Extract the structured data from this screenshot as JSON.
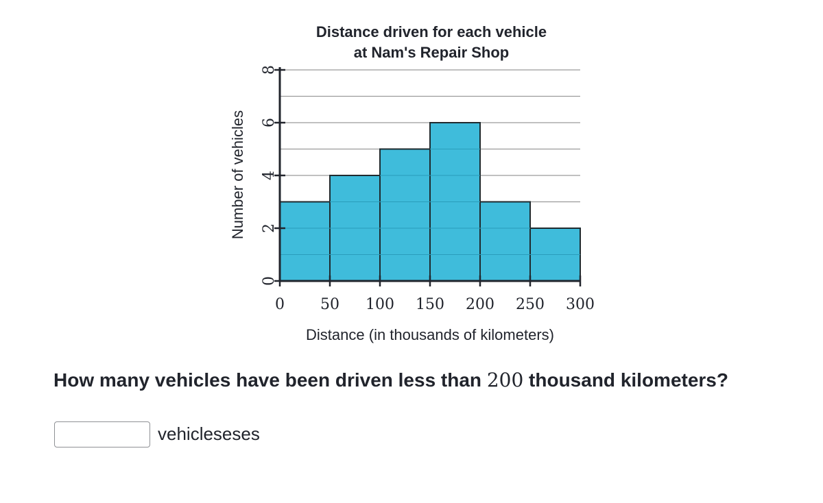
{
  "chart_data": {
    "type": "bar",
    "title": [
      "Distance driven for each vehicle",
      "at Nam's Repair Shop"
    ],
    "xlabel": "Distance (in thousands of kilometers)",
    "ylabel": "Number of vehicles",
    "bins": [
      [
        0,
        50
      ],
      [
        50,
        100
      ],
      [
        100,
        150
      ],
      [
        150,
        200
      ],
      [
        200,
        250
      ],
      [
        250,
        300
      ]
    ],
    "values": [
      3,
      4,
      5,
      6,
      3,
      2
    ],
    "xticks": [
      0,
      50,
      100,
      150,
      200,
      250,
      300
    ],
    "yticks": [
      0,
      2,
      4,
      6,
      8
    ],
    "xlim": [
      0,
      300
    ],
    "ylim": [
      0,
      8
    ],
    "grid": true,
    "bar_color": "#3fbcdb",
    "bar_edge_color": "#1f2a2e"
  },
  "question": {
    "before": "How many vehicles have been driven less than",
    "number": "200",
    "after": "thousand kilometers?"
  },
  "answer": {
    "value": "",
    "unit": "vehicleseses"
  }
}
